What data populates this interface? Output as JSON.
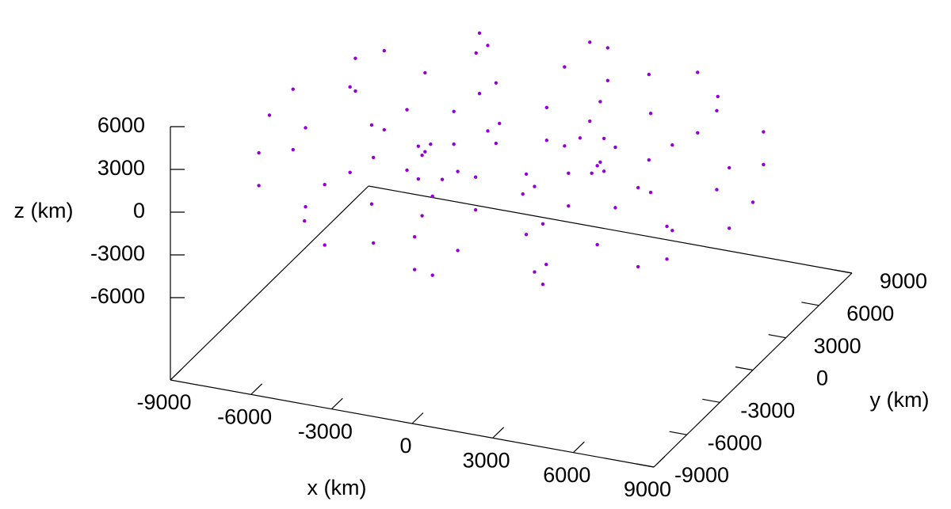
{
  "chart_data": {
    "type": "scatter3d",
    "color": "#9400d3",
    "x_label": "x (km)",
    "y_label": "y (km)",
    "z_label": "z (km)",
    "xlim": [
      -9000,
      9000
    ],
    "ylim": [
      -9000,
      9000
    ],
    "zlim": [
      -6000,
      6000
    ],
    "xticks": [
      -9000,
      -6000,
      -3000,
      0,
      3000,
      6000,
      9000
    ],
    "yticks": [
      -9000,
      -6000,
      -3000,
      0,
      3000,
      6000,
      9000
    ],
    "zticks": [
      -6000,
      -3000,
      0,
      3000,
      6000
    ],
    "x": [
      9000,
      8121,
      6000,
      3879,
      3000,
      3879,
      6000,
      8121,
      7597,
      6191,
      4201,
      2795,
      2795,
      4201,
      6191,
      7597,
      4500,
      4061,
      3000,
      1940,
      1500,
      1940,
      3000,
      4061,
      0,
      0,
      0,
      0,
      0,
      0,
      0,
      0,
      -4500,
      -4061,
      -3000,
      -1940,
      -1500,
      -1940,
      -3000,
      -4061,
      -7597,
      -6191,
      -4201,
      -2795,
      -2795,
      -4201,
      -6191,
      -7597,
      -9000,
      -8121,
      -6000,
      -3879,
      -3000,
      -3879,
      -6000,
      -8121,
      -7597,
      -6191,
      -4201,
      -2795,
      -2795,
      -4201,
      -6191,
      -7597,
      -4500,
      -4061,
      -3000,
      -1940,
      -1500,
      -1940,
      -3000,
      -4061,
      0,
      0,
      0,
      0,
      0,
      0,
      0,
      0,
      4500,
      4061,
      3000,
      1940,
      1500,
      1940,
      3000,
      4061,
      7597,
      6191,
      4201,
      2795,
      2795,
      4201,
      6191,
      7597
    ],
    "y": [
      0,
      0,
      0,
      0,
      0,
      0,
      0,
      0,
      4386,
      3575,
      2426,
      1614,
      1614,
      2426,
      3575,
      4386,
      7794,
      7033,
      5196,
      3359,
      2598,
      3359,
      5196,
      7033,
      8772,
      7149,
      4851,
      3228,
      3228,
      4851,
      7149,
      8772,
      7794,
      7033,
      5196,
      3359,
      2598,
      3359,
      5196,
      7033,
      4386,
      3575,
      2426,
      1614,
      1614,
      2426,
      3575,
      4386,
      0,
      0,
      0,
      0,
      0,
      0,
      0,
      0,
      -4386,
      -3575,
      -2426,
      -1614,
      -1614,
      -2426,
      -3575,
      -4386,
      -7794,
      -7033,
      -5196,
      -3359,
      -2598,
      -3359,
      -5196,
      -7033,
      -8772,
      -7149,
      -4851,
      -3228,
      -3228,
      -4851,
      -7149,
      -8772,
      -7794,
      -7033,
      -5196,
      -3359,
      -2598,
      -3359,
      -5196,
      -7033,
      -4386,
      -3575,
      -2426,
      -1614,
      -1614,
      -2426,
      -3575,
      -4386
    ],
    "z": [
      0,
      2121,
      3000,
      2121,
      0,
      -2121,
      -3000,
      -2121,
      1149,
      2772,
      2772,
      1149,
      -1149,
      -2772,
      -2772,
      -1149,
      0,
      2121,
      3000,
      2121,
      0,
      -2121,
      -3000,
      -2121,
      1149,
      2772,
      2772,
      1149,
      -1149,
      -2772,
      -2772,
      -1149,
      0,
      2121,
      3000,
      2121,
      0,
      -2121,
      -3000,
      -2121,
      1149,
      2772,
      2772,
      1149,
      -1149,
      -2772,
      -2772,
      -1149,
      0,
      2121,
      3000,
      2121,
      0,
      -2121,
      -3000,
      -2121,
      1149,
      2772,
      2772,
      1149,
      -1149,
      -2772,
      -2772,
      -1149,
      0,
      2121,
      3000,
      2121,
      0,
      -2121,
      -3000,
      -2121,
      1149,
      2772,
      2772,
      1149,
      -1149,
      -2772,
      -2772,
      -1149,
      0,
      2121,
      3000,
      2121,
      0,
      -2121,
      -3000,
      -2121,
      1149,
      2772,
      2772,
      1149,
      -1149,
      -2772,
      -2772,
      -1149
    ]
  }
}
